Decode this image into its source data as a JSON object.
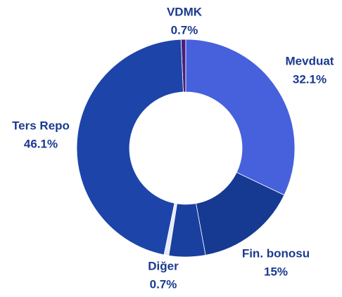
{
  "chart_data": {
    "type": "donut",
    "categories": [
      "VDMK",
      "Mevduat",
      "Fin. bonosu",
      null,
      "Diğer",
      "Ters Repo"
    ],
    "values": [
      0.7,
      32.1,
      15,
      5.4,
      0.7,
      46.1
    ],
    "value_labels": [
      "0.7%",
      "32.1%",
      "15%",
      null,
      "0.7%",
      "46.1%"
    ],
    "colors": [
      "#4a1d7c",
      "#4760dc",
      "#163a92",
      "#1a409f",
      "#e6ebf7",
      "#1d44a8"
    ]
  }
}
